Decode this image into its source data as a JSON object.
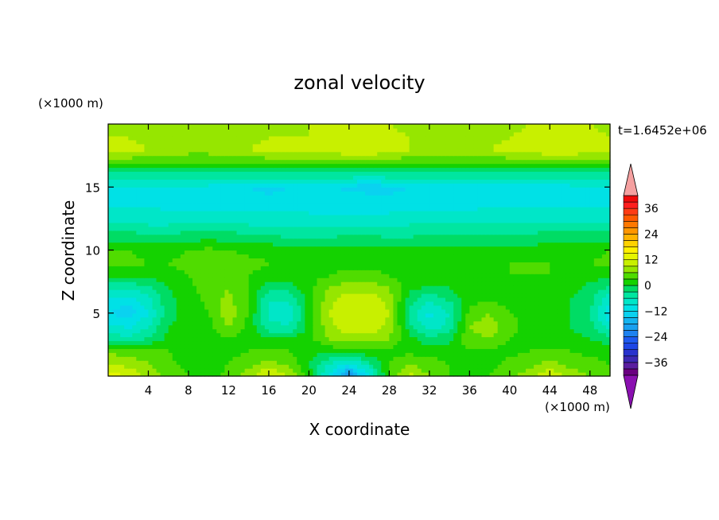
{
  "chart_data": {
    "type": "heatmap",
    "title": "zonal velocity",
    "xlabel": "X coordinate",
    "ylabel": "Z coordinate",
    "x_unit": "(×1000 m)",
    "y_unit": "(×1000 m)",
    "time_label": "t=1.6452e+06",
    "xlim": [
      0,
      50
    ],
    "ylim": [
      0,
      20
    ],
    "xticks": [
      4,
      8,
      12,
      16,
      20,
      24,
      28,
      32,
      36,
      40,
      44,
      48
    ],
    "yticks": [
      5,
      10,
      15
    ],
    "colorbar": {
      "levels": [
        -42,
        -39,
        -36,
        -33,
        -30,
        -27,
        -24,
        -21,
        -18,
        -15,
        -12,
        -9,
        -6,
        -3,
        0,
        3,
        6,
        9,
        12,
        15,
        18,
        21,
        24,
        27,
        30,
        33,
        36,
        39,
        42
      ],
      "ticks": [
        36,
        24,
        12,
        0,
        -12,
        -24,
        -36
      ],
      "colors": [
        "#6a0080",
        "#5a1ea0",
        "#3c28b4",
        "#2832cd",
        "#1e46e6",
        "#1e5af0",
        "#1e82f0",
        "#19a0f0",
        "#14b4f0",
        "#0ad2f0",
        "#00e1e6",
        "#00e6c8",
        "#00e6a0",
        "#00dc64",
        "#14d200",
        "#50dc00",
        "#96e600",
        "#c8f000",
        "#e6f500",
        "#fff000",
        "#ffd200",
        "#ffb400",
        "#ff9600",
        "#ff7800",
        "#ff5a00",
        "#ff3c14",
        "#ff1e1e",
        "#f00a0a"
      ],
      "under_color": "#8a10b0",
      "over_color": "#f5a0a0"
    },
    "z_grid_x": [
      0,
      2,
      4,
      6,
      8,
      10,
      12,
      14,
      16,
      18,
      20,
      22,
      24,
      26,
      28,
      30,
      32,
      34,
      36,
      38,
      40,
      42,
      44,
      46,
      48,
      50
    ],
    "z_grid_y": [
      0,
      1,
      2,
      3,
      4,
      5,
      6,
      7,
      8,
      9,
      10,
      11,
      12,
      13,
      14,
      15,
      16,
      17,
      18,
      19,
      20
    ],
    "values": [
      [
        14,
        12,
        8,
        5,
        3,
        2,
        4,
        8,
        13,
        9,
        2,
        -10,
        -22,
        -10,
        4,
        10,
        6,
        3,
        2,
        3,
        5,
        8,
        12,
        8,
        6,
        5
      ],
      [
        9,
        8,
        6,
        4,
        2,
        1,
        3,
        5,
        7,
        5,
        0,
        -6,
        -10,
        -4,
        3,
        6,
        4,
        3,
        2,
        2,
        4,
        5,
        7,
        5,
        4,
        3
      ],
      [
        5,
        5,
        4,
        3,
        1,
        1,
        2,
        3,
        4,
        3,
        1,
        1,
        2,
        2,
        2,
        2,
        2,
        2,
        3,
        2,
        2,
        3,
        4,
        3,
        2,
        2
      ],
      [
        -4,
        -5,
        -3,
        1,
        1,
        2,
        3,
        2,
        0,
        0,
        2,
        6,
        8,
        8,
        6,
        1,
        -2,
        -1,
        5,
        6,
        3,
        2,
        1,
        1,
        0,
        -2
      ],
      [
        -8,
        -10,
        -6,
        0,
        1,
        2,
        6,
        2,
        -5,
        -6,
        1,
        8,
        11,
        11,
        8,
        -2,
        -8,
        -5,
        6,
        8,
        4,
        2,
        1,
        0,
        -2,
        -8
      ],
      [
        -12,
        -14,
        -9,
        -1,
        1,
        3,
        8,
        3,
        -7,
        -8,
        1,
        9,
        12,
        12,
        9,
        -4,
        -10,
        -6,
        4,
        6,
        3,
        2,
        1,
        0,
        -3,
        -12
      ],
      [
        -10,
        -11,
        -7,
        -1,
        1,
        4,
        7,
        3,
        -6,
        -6,
        1,
        8,
        11,
        11,
        8,
        -2,
        -6,
        -3,
        2,
        3,
        2,
        2,
        1,
        0,
        -2,
        -9
      ],
      [
        -5,
        -6,
        -4,
        0,
        2,
        5,
        6,
        3,
        -2,
        -2,
        2,
        6,
        8,
        8,
        6,
        1,
        -1,
        0,
        2,
        2,
        2,
        2,
        2,
        1,
        -1,
        -4
      ],
      [
        1,
        1,
        1,
        2,
        3,
        6,
        5,
        3,
        2,
        2,
        2,
        3,
        4,
        4,
        3,
        2,
        2,
        2,
        2,
        2,
        3,
        3,
        3,
        2,
        1,
        1
      ],
      [
        4,
        4,
        3,
        3,
        4,
        6,
        5,
        4,
        3,
        3,
        2,
        2,
        2,
        2,
        2,
        2,
        3,
        3,
        3,
        3,
        3,
        3,
        3,
        3,
        3,
        4
      ],
      [
        3,
        3,
        2,
        2,
        3,
        4,
        3,
        2,
        2,
        1,
        1,
        1,
        1,
        1,
        1,
        1,
        1,
        1,
        1,
        1,
        1,
        1,
        2,
        2,
        2,
        3
      ],
      [
        -1,
        -1,
        -2,
        -2,
        -1,
        -1,
        -1,
        -2,
        -2,
        -3,
        -3,
        -3,
        -2,
        -2,
        -3,
        -3,
        -2,
        -2,
        -2,
        -2,
        -2,
        -2,
        -1,
        -1,
        -1,
        -1
      ],
      [
        -5,
        -5,
        -6,
        -6,
        -5,
        -5,
        -5,
        -6,
        -6,
        -6,
        -6,
        -6,
        -6,
        -6,
        -6,
        -6,
        -5,
        -5,
        -5,
        -5,
        -5,
        -5,
        -5,
        -5,
        -5,
        -5
      ],
      [
        -8,
        -8,
        -8,
        -9,
        -9,
        -9,
        -9,
        -9,
        -9,
        -9,
        -9,
        -10,
        -10,
        -10,
        -9,
        -9,
        -9,
        -9,
        -9,
        -8,
        -8,
        -8,
        -8,
        -8,
        -8,
        -8
      ],
      [
        -10,
        -10,
        -10,
        -10,
        -10,
        -10,
        -10,
        -11,
        -11,
        -11,
        -11,
        -10,
        -10,
        -10,
        -11,
        -11,
        -11,
        -10,
        -10,
        -10,
        -10,
        -10,
        -10,
        -10,
        -10,
        -10
      ],
      [
        -9,
        -9,
        -9,
        -9,
        -9,
        -10,
        -10,
        -12,
        -13,
        -12,
        -11,
        -11,
        -13,
        -14,
        -13,
        -12,
        -11,
        -10,
        -10,
        -10,
        -10,
        -10,
        -10,
        -10,
        -9,
        -9
      ],
      [
        -4,
        -4,
        -4,
        -4,
        -4,
        -4,
        -4,
        -4,
        -4,
        -4,
        -4,
        -4,
        -4,
        -4,
        -4,
        -4,
        -4,
        -4,
        -4,
        -4,
        -4,
        -4,
        -4,
        -4,
        -4,
        -4
      ],
      [
        4,
        4,
        4,
        4,
        4,
        4,
        4,
        4,
        4,
        4,
        4,
        4,
        4,
        4,
        4,
        4,
        4,
        4,
        4,
        4,
        4,
        4,
        4,
        4,
        4,
        4
      ],
      [
        10,
        10,
        9,
        8,
        7,
        7,
        8,
        9,
        10,
        10,
        10,
        11,
        12,
        12,
        11,
        9,
        8,
        7,
        8,
        9,
        10,
        11,
        12,
        12,
        11,
        10
      ],
      [
        9,
        9,
        8,
        8,
        7,
        7,
        7,
        8,
        9,
        9,
        9,
        10,
        11,
        11,
        10,
        9,
        8,
        7,
        8,
        8,
        9,
        10,
        11,
        11,
        10,
        9
      ],
      [
        8,
        8,
        8,
        7,
        7,
        7,
        7,
        8,
        8,
        8,
        9,
        9,
        10,
        10,
        9,
        8,
        7,
        7,
        7,
        8,
        8,
        9,
        10,
        10,
        9,
        8
      ]
    ]
  }
}
